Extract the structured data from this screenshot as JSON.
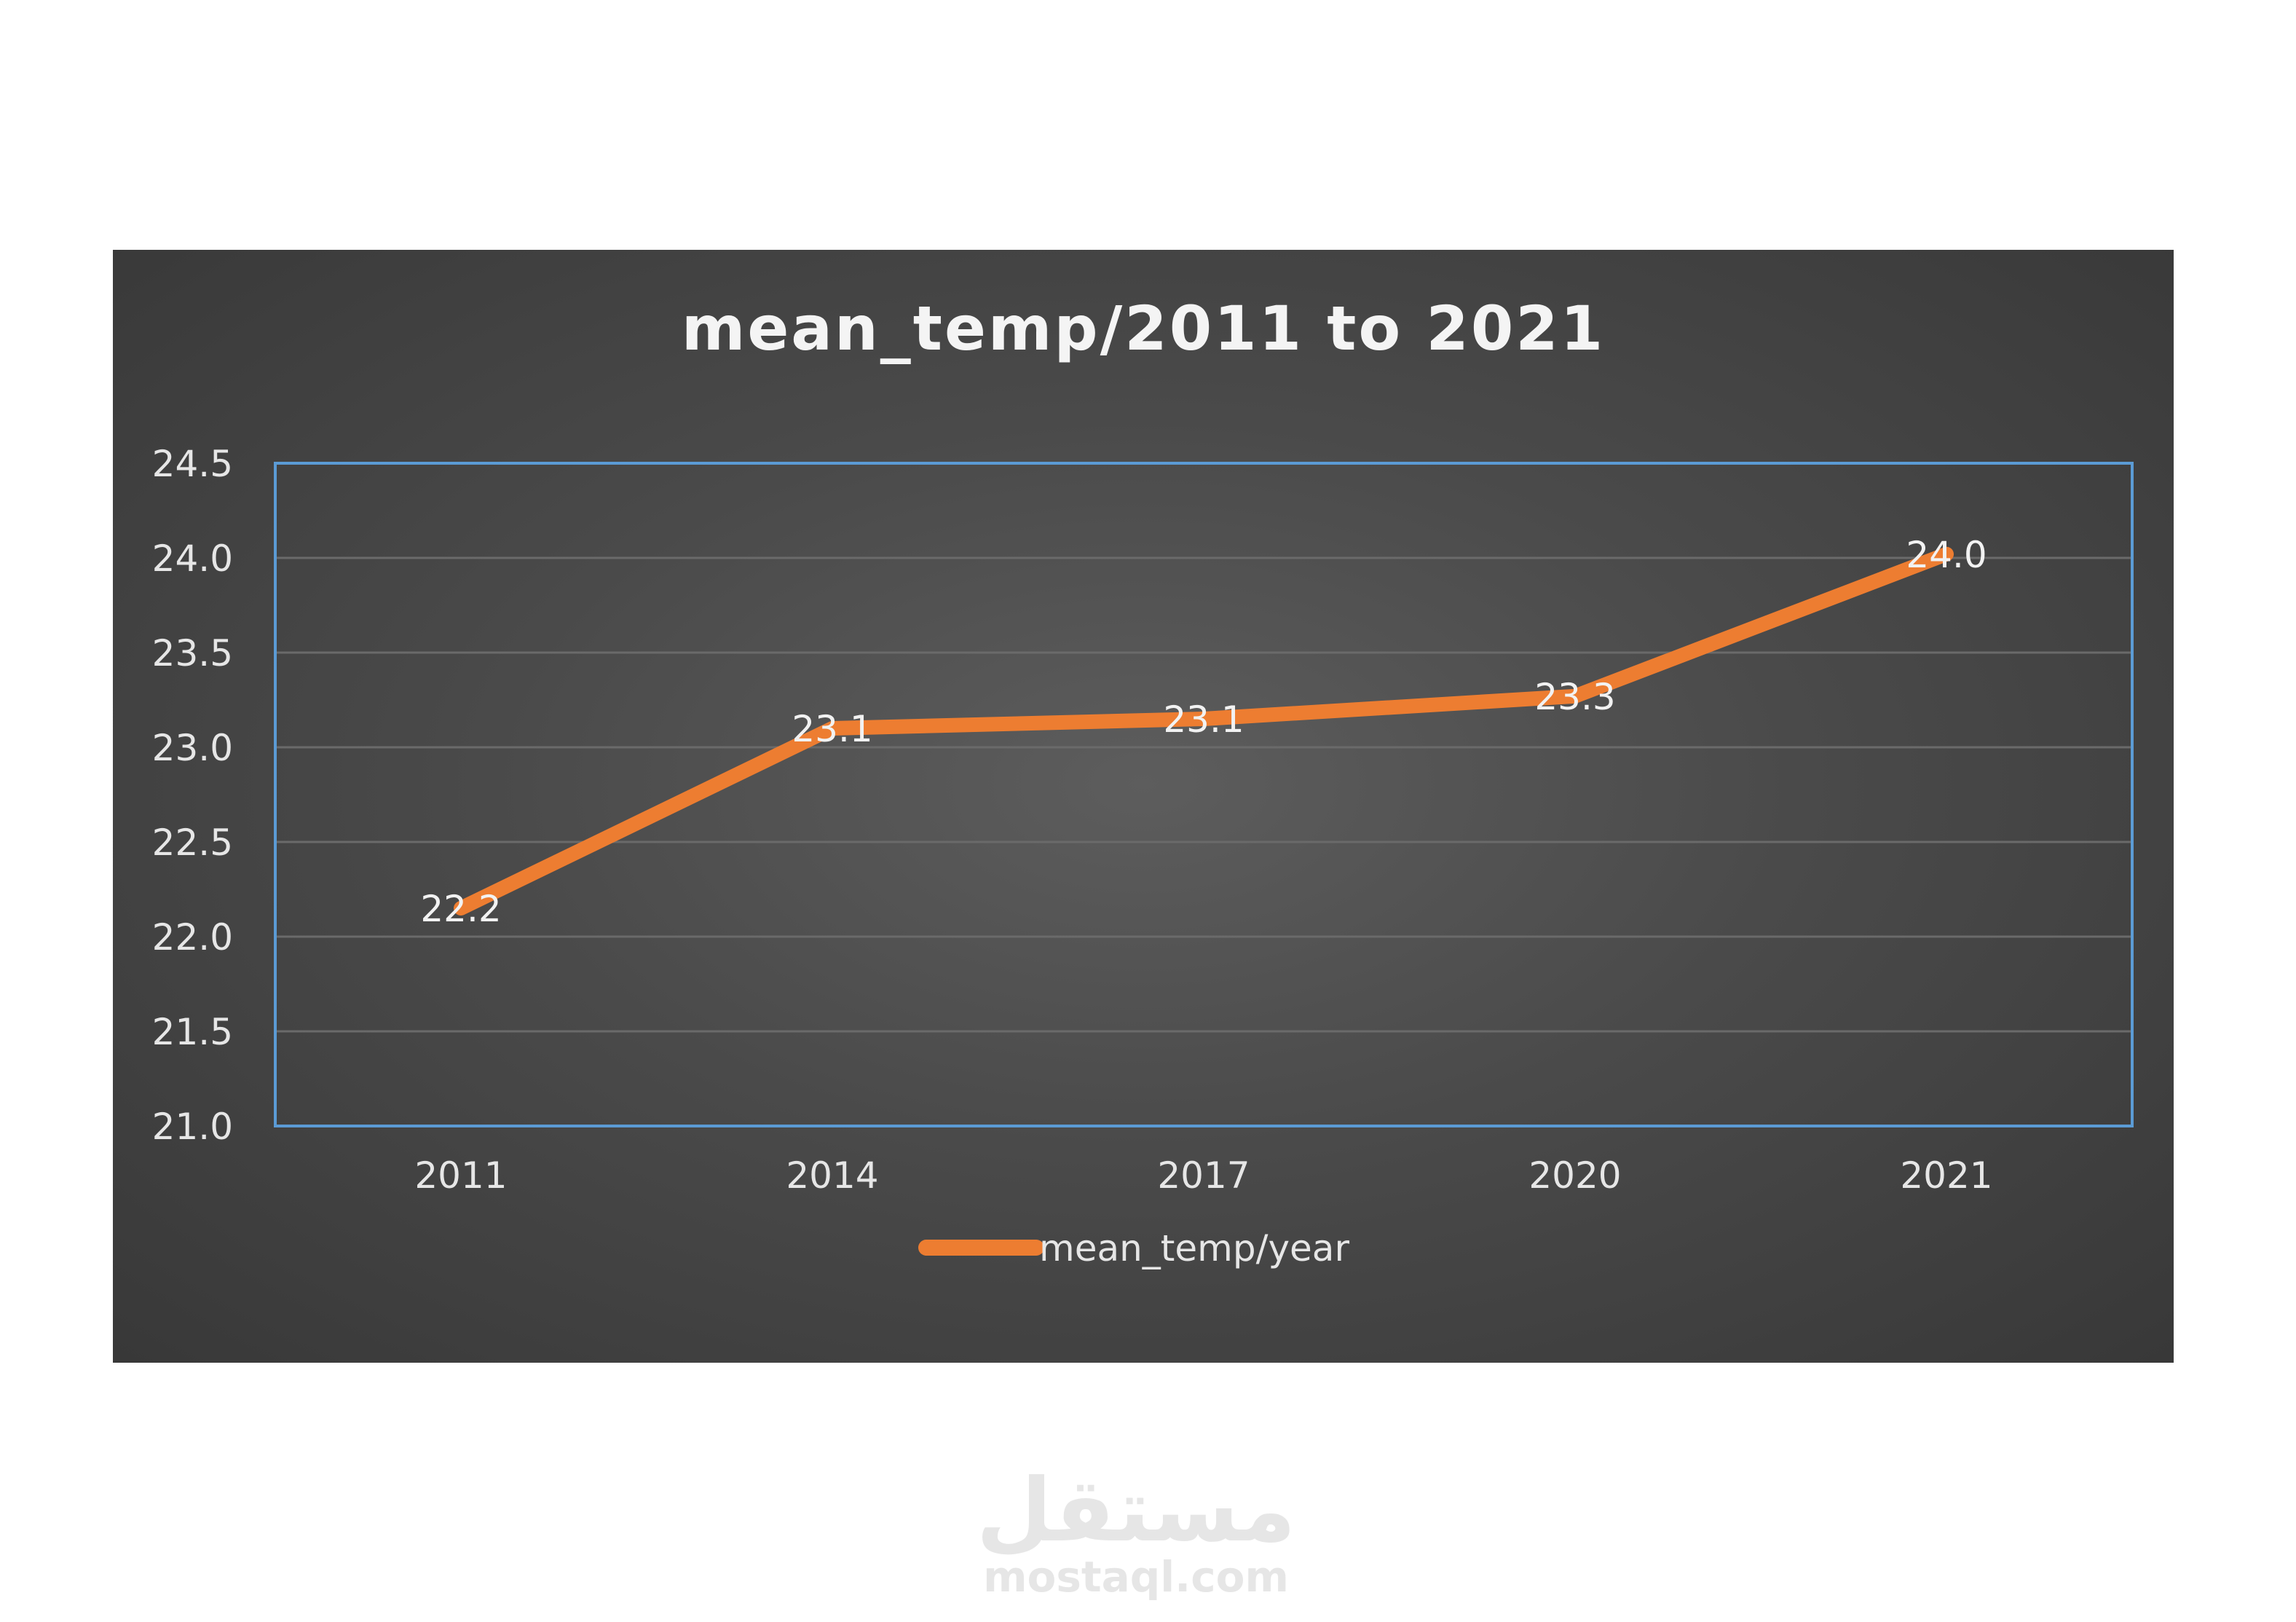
{
  "chart_data": {
    "type": "line",
    "title": "mean_temp/2011 to 2021",
    "xlabel": "",
    "ylabel": "",
    "categories": [
      "2011",
      "2014",
      "2017",
      "2020",
      "2021"
    ],
    "series": [
      {
        "name": "mean_temp/year",
        "values": [
          22.15,
          23.1,
          23.15,
          23.27,
          24.02
        ],
        "labels": [
          "22.2",
          "23.1",
          "23.1",
          "23.3",
          "24.0"
        ],
        "color": "#ed7d31"
      }
    ],
    "ylim": [
      21.0,
      24.5
    ],
    "yticks": [
      "21.0",
      "21.5",
      "22.0",
      "22.5",
      "23.0",
      "23.5",
      "24.0",
      "24.5"
    ],
    "grid": true,
    "legend": "bottom"
  },
  "colors": {
    "plot_border": "#5b9bd5",
    "gridline": "#6a6a6a",
    "line": "#ed7d31"
  },
  "watermark": {
    "logo_text": "مستقل",
    "site_text": "mostaql.com"
  }
}
